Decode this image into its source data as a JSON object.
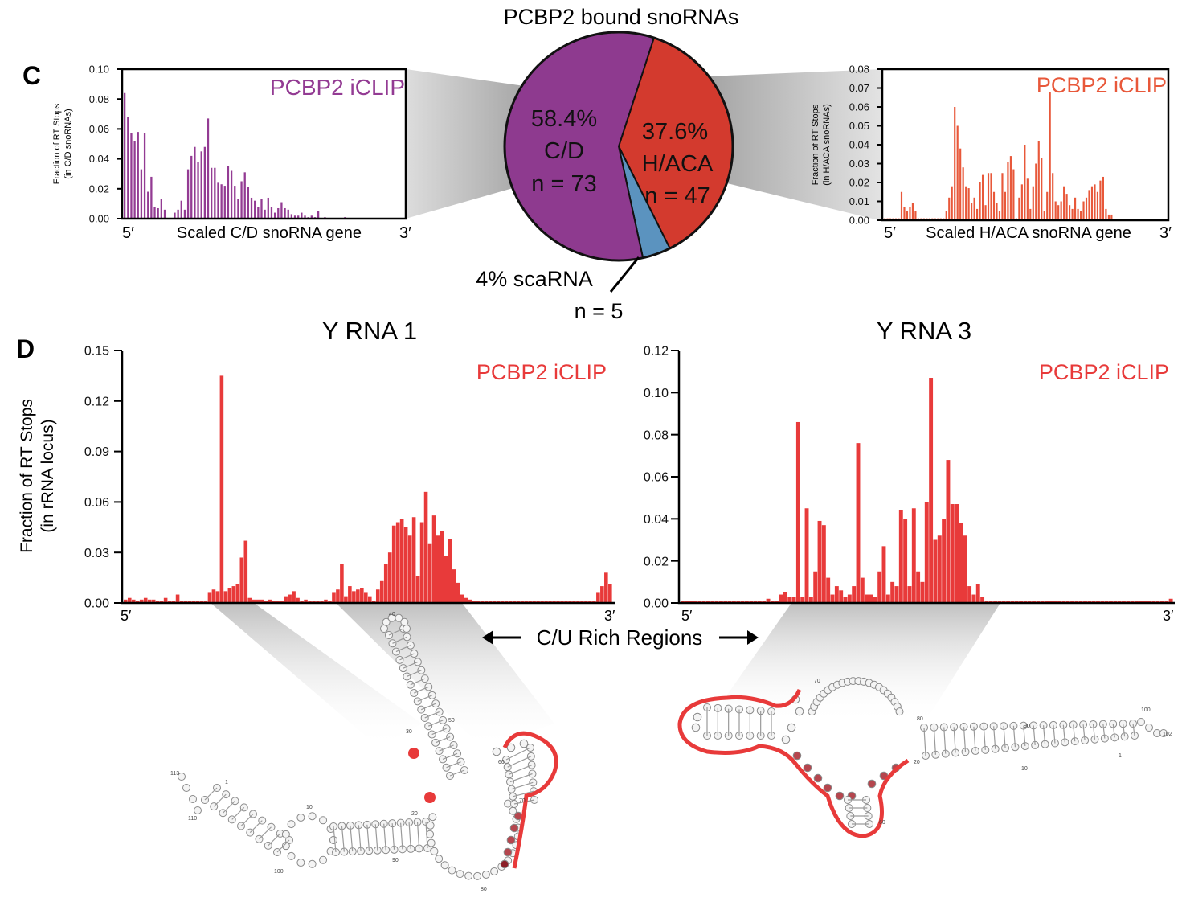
{
  "panel_labels": {
    "c": "C",
    "d": "D"
  },
  "colors": {
    "purple": "#933b93",
    "orange": "#e8583a",
    "red": "#e83a3a",
    "pie_purple": "#8e3a8f",
    "pie_red": "#d33a2e",
    "pie_blue": "#5b93bf"
  },
  "pie": {
    "title": "PCBP2 bound snoRNAs",
    "slices": [
      {
        "name": "C/D",
        "pct_label": "58.4%",
        "n_label": "n = 73",
        "value": 58.4
      },
      {
        "name": "H/ACA",
        "pct_label": "37.6%",
        "n_label": "n = 47",
        "value": 37.6
      },
      {
        "name": "scaRNA",
        "pct_label": "4% scaRNA",
        "n_label": "n = 5",
        "value": 4.0
      }
    ]
  },
  "chart_data": [
    {
      "type": "bar",
      "id": "cd",
      "title": "",
      "series_label": "PCBP2 iCLIP",
      "ylabel_line1": "Fraction of RT Stops",
      "ylabel_line2": "(in C/D snoRNAs)",
      "xlabel": "Scaled C/D snoRNA gene",
      "x_start": "5′",
      "x_end": "3′",
      "ylim": [
        0,
        0.1
      ],
      "yticks": [
        "0.00",
        "0.02",
        "0.04",
        "0.06",
        "0.08",
        "0.10"
      ],
      "values": [
        0.084,
        0.068,
        0.057,
        0.052,
        0.058,
        0.033,
        0.057,
        0.018,
        0.028,
        0.008,
        0.007,
        0.013,
        0.006,
        0,
        0,
        0.004,
        0.006,
        0.012,
        0.006,
        0.033,
        0.042,
        0.048,
        0.038,
        0.045,
        0.048,
        0.067,
        0.034,
        0.034,
        0.024,
        0.023,
        0.022,
        0.035,
        0.032,
        0.022,
        0.013,
        0.025,
        0.031,
        0.021,
        0.014,
        0.012,
        0.008,
        0.013,
        0.006,
        0.014,
        0.008,
        0.004,
        0.007,
        0.011,
        0.007,
        0.006,
        0.003,
        0.002,
        0.002,
        0.004,
        0.002,
        0.001,
        0.002,
        0.001,
        0.005,
        0,
        0.001,
        0,
        0,
        0,
        0,
        0,
        0.001,
        0,
        0,
        0,
        0,
        0,
        0,
        0,
        0,
        0,
        0,
        0,
        0,
        0,
        0,
        0,
        0,
        0
      ]
    },
    {
      "type": "bar",
      "id": "haca",
      "title": "",
      "series_label": "PCBP2 iCLIP",
      "ylabel_line1": "Fraction of RT Stops",
      "ylabel_line2": "(in H/ACA snoRNAs)",
      "xlabel": "Scaled H/ACA snoRNA gene",
      "x_start": "5′",
      "x_end": "3′",
      "ylim": [
        0,
        0.08
      ],
      "yticks": [
        "0.00",
        "0.01",
        "0.02",
        "0.03",
        "0.04",
        "0.05",
        "0.06",
        "0.07",
        "0.08"
      ],
      "values": [
        0.001,
        0.001,
        0.001,
        0.001,
        0.001,
        0.001,
        0.015,
        0.007,
        0.005,
        0.007,
        0.009,
        0.005,
        0.001,
        0.001,
        0.001,
        0.001,
        0.001,
        0.001,
        0.001,
        0.001,
        0.001,
        0.001,
        0.005,
        0.012,
        0.018,
        0.06,
        0.05,
        0.038,
        0.028,
        0.018,
        0.017,
        0.009,
        0.012,
        0.006,
        0.02,
        0.024,
        0.008,
        0.025,
        0.025,
        0.015,
        0.009,
        0.005,
        0.025,
        0.015,
        0.031,
        0.034,
        0.027,
        0.001,
        0.012,
        0.019,
        0.04,
        0.022,
        0.006,
        0.018,
        0.03,
        0.042,
        0.033,
        0.005,
        0.015,
        0.068,
        0.025,
        0.01,
        0.008,
        0.01,
        0.018,
        0.014,
        0.008,
        0.006,
        0.012,
        0.006,
        0.005,
        0.01,
        0.012,
        0.016,
        0.018,
        0.019,
        0.015,
        0.021,
        0.023,
        0.006,
        0.003,
        0.003,
        0,
        0,
        0,
        0,
        0,
        0,
        0,
        0,
        0,
        0,
        0,
        0,
        0,
        0,
        0,
        0,
        0,
        0,
        0
      ]
    },
    {
      "type": "bar",
      "id": "y1",
      "title": "Y RNA 1",
      "series_label": "PCBP2 iCLIP",
      "ylabel_line1": "Fraction of RT Stops",
      "ylabel_line2": "(in rRNA locus)",
      "xlabel": "",
      "x_start": "5′",
      "x_end": "3′",
      "ylim": [
        0,
        0.15
      ],
      "yticks": [
        "0.00",
        "0.03",
        "0.06",
        "0.09",
        "0.12",
        "0.15"
      ],
      "values": [
        0.002,
        0.003,
        0.002,
        0.001,
        0.002,
        0.003,
        0.002,
        0.002,
        0.001,
        0.001,
        0.003,
        0.001,
        0.001,
        0.005,
        0.001,
        0.001,
        0.001,
        0.001,
        0.001,
        0.001,
        0.001,
        0.006,
        0.008,
        0.007,
        0.135,
        0.007,
        0.009,
        0.01,
        0.011,
        0.027,
        0.037,
        0.003,
        0.002,
        0.002,
        0.002,
        0.001,
        0.002,
        0.001,
        0.001,
        0.001,
        0.004,
        0.005,
        0.007,
        0.003,
        0.001,
        0.002,
        0.001,
        0.001,
        0.001,
        0.001,
        0.002,
        0.001,
        0.006,
        0.008,
        0.023,
        0.004,
        0.01,
        0.007,
        0.008,
        0.009,
        0.006,
        0.004,
        0.001,
        0.008,
        0.013,
        0.023,
        0.03,
        0.046,
        0.048,
        0.05,
        0.045,
        0.04,
        0.051,
        0.016,
        0.048,
        0.066,
        0.035,
        0.052,
        0.04,
        0.043,
        0.028,
        0.038,
        0.02,
        0.012,
        0.005,
        0.003,
        0.002,
        0.001,
        0.001,
        0.001,
        0.001,
        0.001,
        0.001,
        0.001,
        0.001,
        0.001,
        0.001,
        0.001,
        0.001,
        0.001,
        0.001,
        0.001,
        0.001,
        0.001,
        0.001,
        0.001,
        0.001,
        0.001,
        0.001,
        0.001,
        0.001,
        0.001,
        0.001,
        0.001,
        0.001,
        0.001,
        0.001,
        0.001,
        0.006,
        0.01,
        0.018,
        0.011
      ]
    },
    {
      "type": "bar",
      "id": "y3",
      "title": "Y RNA 3",
      "series_label": "PCBP2 iCLIP",
      "ylabel_line1": "",
      "ylabel_line2": "",
      "xlabel": "",
      "x_start": "5′",
      "x_end": "3′",
      "ylim": [
        0,
        0.12
      ],
      "yticks": [
        "0.00",
        "0.02",
        "0.04",
        "0.06",
        "0.08",
        "0.10",
        "0.12"
      ],
      "values": [
        0.001,
        0.001,
        0.001,
        0.001,
        0.001,
        0.001,
        0.001,
        0.001,
        0.001,
        0.001,
        0.001,
        0.001,
        0.001,
        0.001,
        0.001,
        0.001,
        0.001,
        0.001,
        0.001,
        0.001,
        0.002,
        0.001,
        0.001,
        0.004,
        0.005,
        0.003,
        0.003,
        0.086,
        0.003,
        0.045,
        0.003,
        0.015,
        0.039,
        0.037,
        0.012,
        0.004,
        0.008,
        0.006,
        0.003,
        0.004,
        0.008,
        0.076,
        0.012,
        0.004,
        0.004,
        0.003,
        0.015,
        0.027,
        0.004,
        0.01,
        0.008,
        0.044,
        0.04,
        0.008,
        0.045,
        0.015,
        0.01,
        0.048,
        0.107,
        0.03,
        0.032,
        0.04,
        0.068,
        0.047,
        0.047,
        0.038,
        0.032,
        0.008,
        0.004,
        0.009,
        0.003,
        0.001,
        0.001,
        0.001,
        0.001,
        0.001,
        0.001,
        0.001,
        0.001,
        0.001,
        0.001,
        0.001,
        0.001,
        0.001,
        0.001,
        0.001,
        0.001,
        0.001,
        0.001,
        0.001,
        0.001,
        0.001,
        0.001,
        0.001,
        0.001,
        0.001,
        0.001,
        0.001,
        0.001,
        0.001,
        0.001,
        0.001,
        0.001,
        0.001,
        0.001,
        0.001,
        0.001,
        0.001,
        0.001,
        0.001,
        0.001,
        0.001,
        0.001,
        0.001,
        0.002
      ]
    }
  ],
  "cu_rich": {
    "label": "C/U Rich Regions"
  },
  "yrna1_structure": {
    "numbers": [
      "40",
      "50",
      "30",
      "60",
      "70",
      "113",
      "1",
      "110",
      "10",
      "20",
      "100",
      "90",
      "80"
    ]
  },
  "yrna3_structure": {
    "numbers": [
      "70",
      "80",
      "90",
      "10",
      "20",
      "100",
      "102",
      "1",
      "60"
    ]
  }
}
